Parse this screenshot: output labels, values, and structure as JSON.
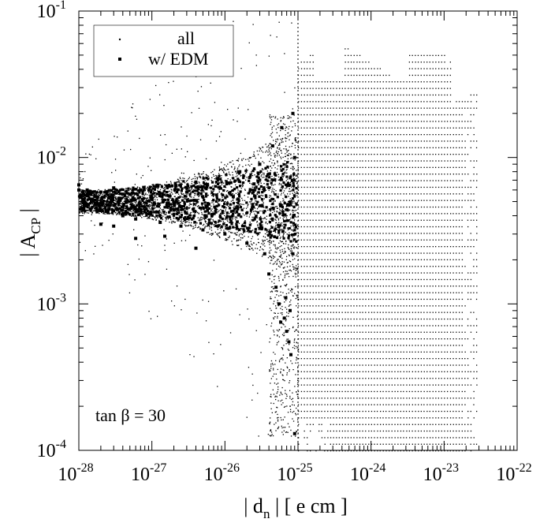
{
  "chart_data": {
    "type": "scatter",
    "x_scale": "log",
    "y_scale": "log",
    "xlim": [
      1e-28,
      1e-22
    ],
    "ylim": [
      0.0001,
      0.1
    ],
    "xlabel": "| d_n |  [ e cm ]",
    "xlabel_parts": {
      "main": "| d",
      "sub": "n",
      "rest": " |  [ e cm ]"
    },
    "ylabel": "| A_CP |",
    "ylabel_parts": {
      "main": "| A",
      "sub": "CP",
      "rest": " |"
    },
    "x_ticks": [
      {
        "base": "10",
        "exp": "-28",
        "value": 1e-28
      },
      {
        "base": "10",
        "exp": "-27",
        "value": 1e-27
      },
      {
        "base": "10",
        "exp": "-26",
        "value": 1e-26
      },
      {
        "base": "10",
        "exp": "-25",
        "value": 1e-25
      },
      {
        "base": "10",
        "exp": "-24",
        "value": 1e-24
      },
      {
        "base": "10",
        "exp": "-23",
        "value": 1e-23
      },
      {
        "base": "10",
        "exp": "-22",
        "value": 1e-22
      }
    ],
    "y_ticks": [
      {
        "base": "10",
        "exp": "-4",
        "value": 0.0001
      },
      {
        "base": "10",
        "exp": "-3",
        "value": 0.001
      },
      {
        "base": "10",
        "exp": "-2",
        "value": 0.01
      },
      {
        "base": "10",
        "exp": "-1",
        "value": 0.1
      }
    ],
    "annotation": "tan β = 30",
    "vertical_line": {
      "x": 1e-25,
      "style": "dotted"
    },
    "legend": {
      "placement": "top-left",
      "entries": [
        {
          "label": "all",
          "marker": "small-dot"
        },
        {
          "label": "w/ EDM",
          "marker": "filled-square"
        }
      ]
    },
    "series": [
      {
        "name": "all",
        "marker": "small-dot",
        "description_regions": [
          {
            "x_range": [
              1e-28,
              1e-25
            ],
            "y_range": [
              0.0003,
              0.03
            ]
          },
          {
            "x_range": [
              1e-25,
              3e-23
            ],
            "y_range": [
              0.0001,
              0.06
            ]
          }
        ]
      },
      {
        "name": "w/ EDM",
        "marker": "filled-square",
        "points": [
          [
            1e-28,
            0.0065
          ],
          [
            1e-28,
            0.006
          ],
          [
            1.1e-28,
            0.0055
          ],
          [
            1.2e-28,
            0.005
          ],
          [
            1.1e-28,
            0.0045
          ],
          [
            1.3e-28,
            0.006
          ],
          [
            1.5e-28,
            0.0052
          ],
          [
            1.8e-28,
            0.0048
          ],
          [
            2e-28,
            0.0058
          ],
          [
            2.5e-28,
            0.0042
          ],
          [
            3e-28,
            0.0062
          ],
          [
            3.5e-28,
            0.005
          ],
          [
            4e-28,
            0.004
          ],
          [
            5e-28,
            0.0056
          ],
          [
            6e-28,
            0.0038
          ],
          [
            7e-28,
            0.006
          ],
          [
            8e-28,
            0.0046
          ],
          [
            1e-27,
            0.0052
          ],
          [
            1.3e-27,
            0.0036
          ],
          [
            1.6e-27,
            0.0064
          ],
          [
            2e-27,
            0.0044
          ],
          [
            2.5e-27,
            0.0034
          ],
          [
            3e-27,
            0.0058
          ],
          [
            4e-27,
            0.0068
          ],
          [
            5e-27,
            0.0032
          ],
          [
            6e-27,
            0.0048
          ],
          [
            8e-27,
            0.0072
          ],
          [
            1e-26,
            0.003
          ],
          [
            1.3e-26,
            0.0054
          ],
          [
            1.6e-26,
            0.008
          ],
          [
            2e-26,
            0.0026
          ],
          [
            2.5e-26,
            0.0066
          ],
          [
            3e-26,
            0.009
          ],
          [
            3.5e-26,
            0.0022
          ],
          [
            4e-26,
            0.0016
          ],
          [
            4.5e-26,
            0.012
          ],
          [
            5e-26,
            0.0013
          ],
          [
            5.5e-26,
            0.001
          ],
          [
            6e-26,
            0.016
          ],
          [
            6.5e-26,
            0.0008
          ],
          [
            7e-26,
            0.00065
          ],
          [
            7.5e-26,
            0.00055
          ],
          [
            8e-26,
            0.00045
          ],
          [
            8.5e-26,
            0.02
          ],
          [
            9e-26,
            0.00013
          ],
          [
            9e-26,
            0.01
          ],
          [
            8.5e-26,
            0.0022
          ],
          [
            7.8e-26,
            0.0009
          ],
          [
            6.8e-26,
            0.0011
          ],
          [
            5.8e-26,
            0.00075
          ],
          [
            2e-28,
            0.0035
          ],
          [
            3e-28,
            0.0034
          ],
          [
            6e-28,
            0.0028
          ],
          [
            1.5e-27,
            0.0029
          ],
          [
            4e-27,
            0.0024
          ]
        ]
      }
    ]
  }
}
